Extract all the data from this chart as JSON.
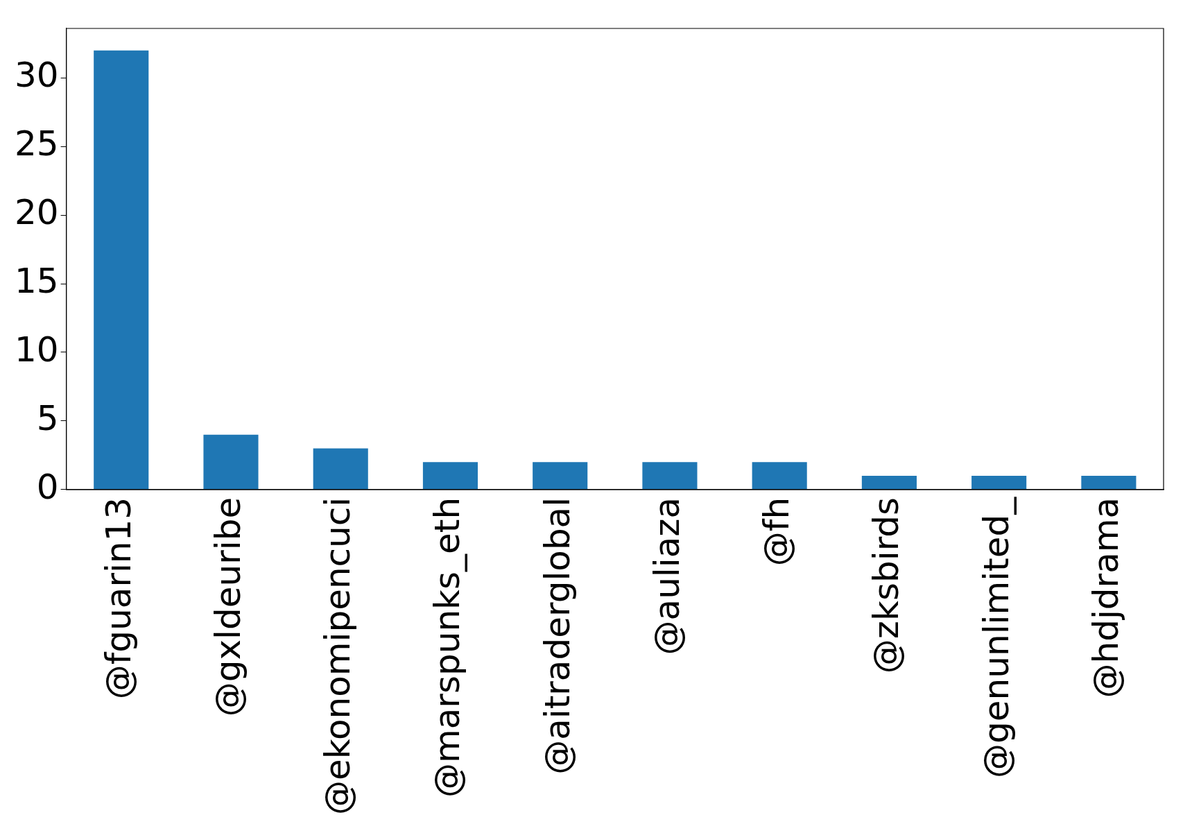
{
  "chart_data": {
    "type": "bar",
    "categories": [
      "@fguarin13",
      "@gxldeuribe",
      "@ekonomipencuci",
      "@marspunks_eth",
      "@aitraderglobal",
      "@auliaza",
      "@fh",
      "@zksbirds",
      "@genunlimited_",
      "@hdjdrama"
    ],
    "values": [
      32,
      4,
      3,
      2,
      2,
      2,
      2,
      1,
      1,
      1
    ],
    "color": "#1f77b4",
    "ylim": [
      0,
      33.6
    ],
    "yticks": [
      0,
      5,
      10,
      15,
      20,
      25,
      30
    ],
    "grid": false,
    "legend": false
  }
}
